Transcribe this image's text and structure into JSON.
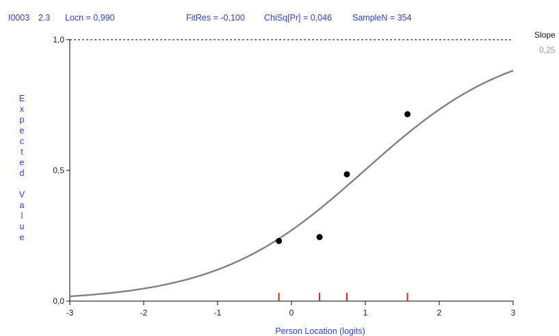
{
  "header": {
    "item": "I0003",
    "class_interval": "2.3",
    "locn": "Locn = 0,990",
    "fitres": "FitRes = -0,100",
    "chisq": "ChiSq[Pr] = 0,046",
    "samplen": "SampleN = 354"
  },
  "slope": {
    "label": "Slope",
    "value": "0,25"
  },
  "chart_data": {
    "type": "line",
    "xlabel": "Person Location (logits)",
    "ylabel": "Expected Value",
    "xlim": [
      -3,
      3
    ],
    "ylim": [
      0,
      1
    ],
    "x_ticks": [
      -3,
      -2,
      -1,
      0,
      1,
      2,
      3
    ],
    "x_tick_labels": [
      "-3",
      "-2",
      "-1",
      "0",
      "1",
      "2",
      "3"
    ],
    "y_ticks": [
      0,
      0.5,
      1
    ],
    "y_tick_labels": [
      "0,0",
      "0,5",
      "1,0"
    ],
    "upper_asymptote_dashed": 1.0,
    "curve": {
      "model": "logistic",
      "location": 0.99,
      "slope": 0.25
    },
    "observed_points": [
      {
        "x": -0.17,
        "y": 0.23
      },
      {
        "x": 0.38,
        "y": 0.245
      },
      {
        "x": 0.75,
        "y": 0.485
      },
      {
        "x": 1.57,
        "y": 0.715
      }
    ],
    "class_interval_marks": [
      -0.17,
      0.38,
      0.75,
      1.57
    ],
    "colors": {
      "curve": "#808080",
      "points": "#000000",
      "marks": "#e02020",
      "text_blue": "#2b3fd6"
    }
  }
}
